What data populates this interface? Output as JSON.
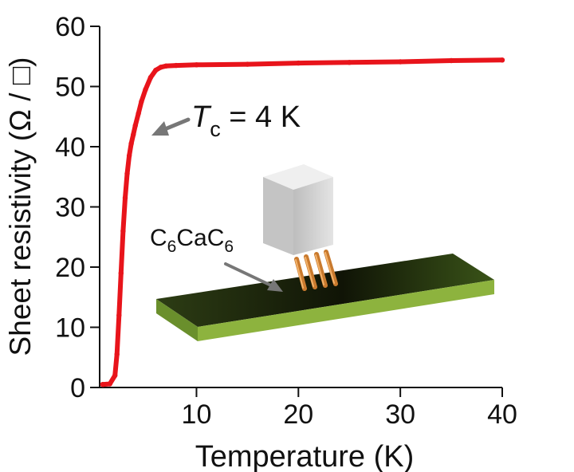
{
  "chart_data": {
    "type": "line",
    "xlabel": "Temperature (K)",
    "ylabel": "Sheet resistivity (Ω / □)",
    "xlim": [
      0.5,
      40
    ],
    "ylim": [
      0,
      60
    ],
    "x_ticks": [
      10,
      20,
      30,
      40
    ],
    "y_ticks": [
      0,
      10,
      20,
      30,
      40,
      50,
      60
    ],
    "x_tick_labels": [
      "10",
      "20",
      "30",
      "40"
    ],
    "y_tick_labels": [
      "0",
      "10",
      "20",
      "30",
      "40",
      "50",
      "60"
    ],
    "grid": false,
    "series": [
      {
        "color": "#e8141b",
        "x": [
          0.8,
          1.5,
          2.0,
          2.2,
          2.4,
          2.6,
          2.8,
          3.0,
          3.2,
          3.4,
          3.6,
          3.8,
          4.0,
          4.3,
          4.6,
          5.0,
          5.5,
          6.0,
          6.5,
          7.0,
          8.0,
          10.0,
          15.0,
          20.0,
          25.0,
          30.0,
          35.0,
          40.0
        ],
        "y": [
          0.5,
          0.6,
          2.0,
          5.5,
          12.0,
          19.0,
          26.0,
          31.5,
          35.5,
          38.5,
          40.5,
          42.0,
          43.5,
          45.5,
          47.5,
          49.5,
          51.5,
          52.7,
          53.2,
          53.4,
          53.5,
          53.6,
          53.7,
          53.9,
          54.0,
          54.1,
          54.3,
          54.4
        ]
      }
    ],
    "annotations": {
      "tc_symbol": "T",
      "tc_subscript": "c",
      "tc_value": " = 4 K",
      "sample_c1": "C",
      "sample_sub1": "6",
      "sample_ca": "Ca",
      "sample_c2": "C",
      "sample_sub2": "6"
    },
    "colors": {
      "curve": "#e8141b",
      "substrate": "#6a9a2a",
      "probe": "#d8d8d8",
      "pins": "#d98a3a",
      "arrow": "#777777"
    }
  }
}
